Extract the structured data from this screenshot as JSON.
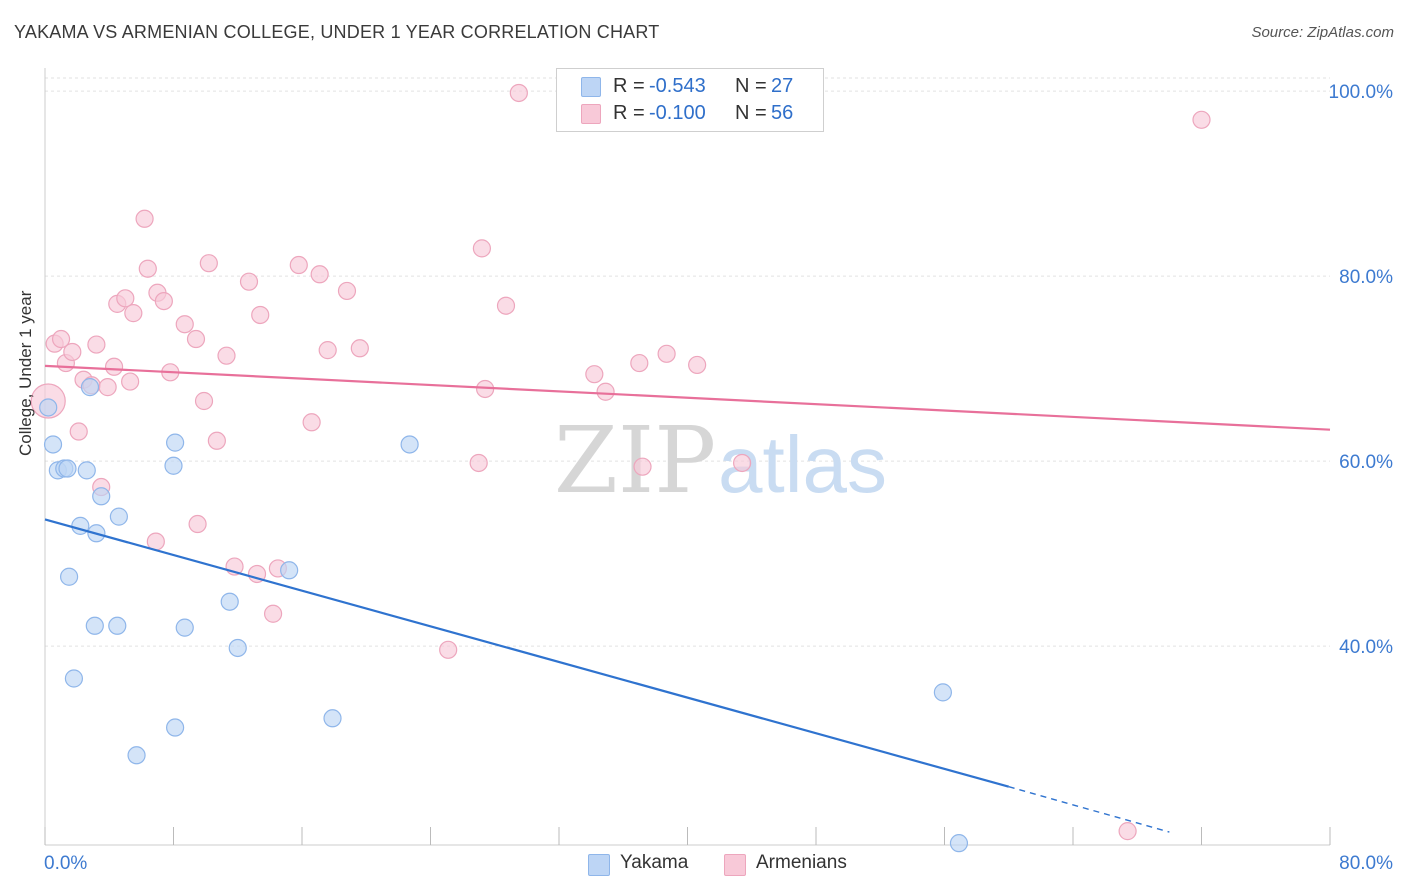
{
  "header": {
    "title": "YAKAMA VS ARMENIAN COLLEGE, UNDER 1 YEAR CORRELATION CHART",
    "source": "Source: ZipAtlas.com"
  },
  "watermark": {
    "zip": "ZIP",
    "atlas": "atlas"
  },
  "legend": {
    "series": [
      {
        "name": "Yakama",
        "r_label": "R =",
        "r_value": "-0.543",
        "n_label": "N =",
        "n_value": "27",
        "color": "#8fb6ea",
        "fill": "#bdd5f5",
        "line_color": "#2f73cf"
      },
      {
        "name": "Armenians",
        "r_label": "R =",
        "r_value": "-0.100",
        "n_label": "N =",
        "n_value": "56",
        "color": "#eda6bd",
        "fill": "#f8c9d8",
        "line_color": "#e8709a"
      }
    ]
  },
  "chart_data": {
    "type": "scatter",
    "title": "YAKAMA VS ARMENIAN COLLEGE, UNDER 1 YEAR CORRELATION CHART",
    "xlabel": "",
    "ylabel": "College, Under 1 year",
    "xlim": [
      0,
      80
    ],
    "ylim": [
      18.5,
      102.5
    ],
    "x_tick_labels": [
      "0.0%",
      "80.0%"
    ],
    "y_ticks": [
      40,
      60,
      80,
      100
    ],
    "y_tick_labels": [
      "40.0%",
      "60.0%",
      "80.0%",
      "100.0%"
    ],
    "grid": true,
    "series": [
      {
        "name": "Yakama",
        "points": [
          [
            0.2,
            65.8
          ],
          [
            0.5,
            61.8
          ],
          [
            0.8,
            59.0
          ],
          [
            1.2,
            59.2
          ],
          [
            1.4,
            59.2
          ],
          [
            1.5,
            47.5
          ],
          [
            1.8,
            36.5
          ],
          [
            2.2,
            53.0
          ],
          [
            2.6,
            59.0
          ],
          [
            2.8,
            68.0
          ],
          [
            3.1,
            42.2
          ],
          [
            3.2,
            52.2
          ],
          [
            3.5,
            56.2
          ],
          [
            4.5,
            42.2
          ],
          [
            4.6,
            54.0
          ],
          [
            5.7,
            28.2
          ],
          [
            8.0,
            59.5
          ],
          [
            8.1,
            62.0
          ],
          [
            8.1,
            31.2
          ],
          [
            8.7,
            42.0
          ],
          [
            11.5,
            44.8
          ],
          [
            12.0,
            39.8
          ],
          [
            15.2,
            48.2
          ],
          [
            17.9,
            32.2
          ],
          [
            22.7,
            61.8
          ],
          [
            55.9,
            35.0
          ],
          [
            56.9,
            18.7
          ]
        ],
        "trend": {
          "x": [
            0,
            60
          ],
          "y": [
            53.7,
            24.8
          ],
          "dashed_to": [
            70,
            19.9
          ]
        }
      },
      {
        "name": "Armenians",
        "points": [
          [
            0.2,
            66.5
          ],
          [
            0.6,
            72.7
          ],
          [
            1.0,
            73.2
          ],
          [
            1.3,
            70.6
          ],
          [
            1.7,
            71.8
          ],
          [
            2.1,
            63.2
          ],
          [
            2.4,
            68.8
          ],
          [
            2.9,
            68.2
          ],
          [
            3.2,
            72.6
          ],
          [
            3.5,
            57.2
          ],
          [
            3.9,
            68.0
          ],
          [
            4.3,
            70.2
          ],
          [
            4.5,
            77.0
          ],
          [
            5.0,
            77.6
          ],
          [
            5.3,
            68.6
          ],
          [
            5.5,
            76.0
          ],
          [
            6.2,
            86.2
          ],
          [
            6.4,
            80.8
          ],
          [
            6.9,
            51.3
          ],
          [
            7.0,
            78.2
          ],
          [
            7.4,
            77.3
          ],
          [
            7.8,
            69.6
          ],
          [
            8.7,
            74.8
          ],
          [
            9.4,
            73.2
          ],
          [
            9.5,
            53.2
          ],
          [
            9.9,
            66.5
          ],
          [
            10.2,
            81.4
          ],
          [
            10.7,
            62.2
          ],
          [
            11.3,
            71.4
          ],
          [
            11.8,
            48.6
          ],
          [
            12.7,
            79.4
          ],
          [
            13.2,
            47.8
          ],
          [
            13.4,
            75.8
          ],
          [
            14.2,
            43.5
          ],
          [
            14.5,
            48.4
          ],
          [
            15.8,
            81.2
          ],
          [
            16.6,
            64.2
          ],
          [
            17.1,
            80.2
          ],
          [
            17.6,
            72.0
          ],
          [
            18.8,
            78.4
          ],
          [
            19.6,
            72.2
          ],
          [
            25.1,
            39.6
          ],
          [
            27.0,
            59.8
          ],
          [
            27.2,
            83.0
          ],
          [
            27.4,
            67.8
          ],
          [
            28.7,
            76.8
          ],
          [
            29.5,
            99.8
          ],
          [
            34.2,
            69.4
          ],
          [
            34.9,
            67.5
          ],
          [
            37.0,
            70.6
          ],
          [
            37.2,
            59.4
          ],
          [
            38.7,
            71.6
          ],
          [
            40.6,
            70.4
          ],
          [
            43.4,
            59.8
          ],
          [
            67.4,
            20.0
          ],
          [
            72.0,
            96.9
          ]
        ],
        "trend": {
          "x": [
            0,
            80
          ],
          "y": [
            70.3,
            63.4
          ]
        }
      }
    ]
  }
}
